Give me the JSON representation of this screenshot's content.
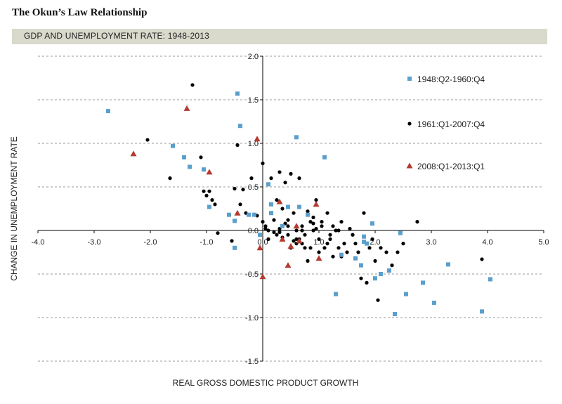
{
  "title": "The Okun’s Law Relationship",
  "subtitle": "GDP AND UNEMPLOYMENT RATE: 1948-2013",
  "colors": {
    "s1": "#5b9fcc",
    "s2": "#000000",
    "s3": "#b53a2f",
    "grid": "#999999",
    "axis": "#000000"
  },
  "chart_data": {
    "type": "scatter",
    "xlabel": "REAL GROSS DOMESTIC PRODUCT GROWTH",
    "ylabel": "CHANGE IN UNEMPLOYMENT RATE",
    "xlim": [
      -4.0,
      5.0
    ],
    "ylim": [
      -1.5,
      2.0
    ],
    "xticks": [
      "-4.0",
      "-3.0",
      "-2.0",
      "-1.0",
      "0.0",
      "1.0",
      "2.0",
      "3.0",
      "4.0",
      "5.0"
    ],
    "xtick_values": [
      -4,
      -3,
      -2,
      -1,
      0,
      1,
      2,
      3,
      4,
      5
    ],
    "yticks": [
      "2.0",
      "1.5",
      "1.0",
      "0.5",
      "0.0",
      "-0.5",
      "-1.0",
      "-1.5"
    ],
    "ytick_values": [
      2,
      1.5,
      1,
      0.5,
      0,
      -0.5,
      -1,
      -1.5
    ],
    "grid": "horizontal dashed",
    "legend_position": "top-right",
    "series": [
      {
        "name": "1948:Q2-1960:Q4",
        "marker": "square",
        "x": [
          -2.75,
          -0.45,
          -0.4,
          -1.6,
          -1.4,
          -1.3,
          -1.05,
          -0.95,
          -0.6,
          -0.5,
          -0.5,
          -0.25,
          -0.15,
          -0.05,
          0.1,
          0.15,
          0.15,
          0.35,
          0.45,
          0.6,
          0.65,
          0.8,
          1.1,
          1.3,
          1.4,
          1.65,
          1.75,
          1.8,
          1.8,
          1.85,
          1.95,
          2.0,
          2.1,
          2.25,
          2.35,
          2.45,
          2.55,
          2.85,
          3.05,
          3.3,
          3.9,
          4.05
        ],
        "y": [
          1.37,
          1.57,
          1.2,
          0.97,
          0.84,
          0.73,
          0.7,
          0.27,
          0.18,
          0.11,
          -0.2,
          0.18,
          0.18,
          -0.05,
          0.53,
          0.3,
          0.2,
          0.05,
          0.27,
          1.07,
          0.27,
          0.18,
          0.84,
          -0.73,
          -0.28,
          -0.32,
          -0.4,
          -0.07,
          -0.13,
          -0.15,
          0.08,
          -0.55,
          -0.5,
          -0.46,
          -0.96,
          -0.03,
          -0.73,
          -0.6,
          -0.83,
          -0.39,
          -0.93,
          -0.56
        ]
      },
      {
        "name": "1961:Q1-2007:Q4",
        "marker": "circle",
        "x": [
          -1.25,
          -2.05,
          -1.1,
          -1.65,
          -1.05,
          -1.0,
          -0.95,
          -0.9,
          -0.85,
          -0.8,
          -0.55,
          -0.5,
          -0.45,
          -0.4,
          -0.35,
          -0.3,
          -0.2,
          -0.1,
          0.0,
          0.0,
          0.05,
          0.1,
          0.15,
          0.2,
          0.25,
          0.3,
          0.35,
          0.4,
          0.45,
          0.5,
          0.55,
          0.6,
          0.65,
          0.7,
          0.75,
          0.8,
          0.85,
          0.9,
          0.95,
          1.0,
          1.05,
          1.1,
          1.15,
          1.2,
          1.25,
          1.3,
          1.35,
          1.4,
          1.45,
          1.5,
          1.55,
          1.6,
          1.65,
          1.7,
          1.75,
          1.8,
          1.85,
          1.9,
          1.95,
          2.0,
          2.05,
          2.1,
          2.2,
          2.3,
          2.4,
          2.5,
          2.75,
          3.9,
          0.3,
          0.45,
          0.6,
          0.7,
          0.9,
          1.05,
          1.2,
          0.2,
          0.35,
          0.55,
          0.75,
          0.95,
          1.15,
          1.35,
          0.1,
          0.25,
          0.4,
          0.65,
          0.85,
          1.25,
          0.5,
          0.8,
          1.0,
          0.15,
          0.6,
          0.9,
          1.4,
          1.6,
          0.3,
          0.7,
          0.05,
          0.45
        ],
        "y": [
          1.67,
          1.04,
          0.84,
          0.6,
          0.45,
          0.4,
          0.45,
          0.35,
          0.3,
          -0.03,
          -0.12,
          0.48,
          0.98,
          0.3,
          0.47,
          0.2,
          0.6,
          0.17,
          0.77,
          0.1,
          0.05,
          -0.1,
          0.6,
          0.12,
          0.35,
          0.67,
          0.25,
          0.55,
          0.12,
          0.65,
          0.2,
          0.0,
          0.6,
          0.05,
          -0.05,
          0.22,
          0.1,
          0.0,
          0.35,
          -0.1,
          0.05,
          -0.2,
          0.2,
          -0.1,
          0.05,
          0.0,
          -0.2,
          -0.3,
          -0.15,
          -0.25,
          0.02,
          -0.05,
          -0.15,
          -0.25,
          -0.55,
          0.2,
          -0.6,
          -0.2,
          -0.1,
          -0.35,
          -0.8,
          -0.2,
          -0.25,
          -0.4,
          -0.25,
          -0.15,
          0.1,
          -0.33,
          0.02,
          0.05,
          -0.1,
          0.0,
          0.15,
          0.1,
          -0.05,
          -0.02,
          -0.08,
          -0.12,
          -0.2,
          0.02,
          -0.15,
          0.0,
          0.0,
          -0.05,
          0.08,
          -0.1,
          -0.2,
          -0.3,
          -0.2,
          -0.35,
          -0.25,
          0.3,
          -0.15,
          0.08,
          0.1,
          -0.05,
          -0.02,
          -0.15,
          0.02,
          -0.05
        ]
      },
      {
        "name": "2008:Q1-2013:Q1",
        "marker": "triangle",
        "x": [
          -2.3,
          -1.35,
          -0.95,
          -0.1,
          -0.45,
          0.0,
          -0.05,
          0.3,
          0.45,
          0.6,
          0.65,
          0.95,
          1.0,
          0.5,
          0.35
        ],
        "y": [
          0.88,
          1.4,
          0.67,
          1.05,
          0.2,
          -0.53,
          -0.2,
          0.33,
          -0.4,
          0.05,
          -0.12,
          0.3,
          -0.32,
          -0.18,
          -0.1
        ]
      }
    ]
  }
}
